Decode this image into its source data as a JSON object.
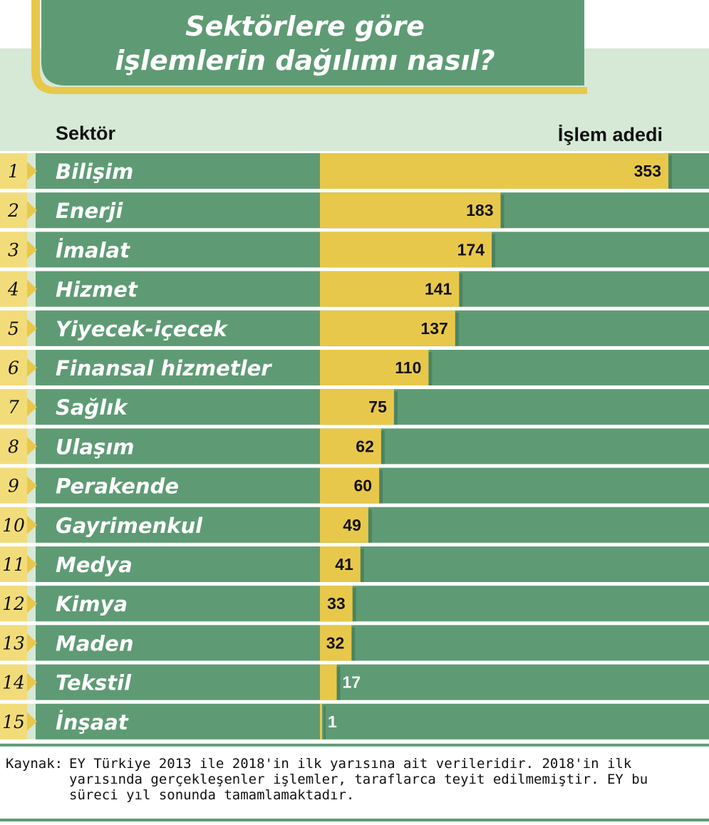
{
  "chart_data": {
    "type": "bar",
    "orientation": "horizontal",
    "title_lines": [
      "Sektörlere göre",
      "işlemlerin dağılımı nasıl?"
    ],
    "category_header": "Sektör",
    "value_header": "İşlem adedi",
    "ranks": [
      "1",
      "2",
      "3",
      "4",
      "5",
      "6",
      "7",
      "8",
      "9",
      "10",
      "11",
      "12",
      "13",
      "14",
      "15"
    ],
    "categories": [
      "Bilişim",
      "Enerji",
      "İmalat",
      "Hizmet",
      "Yiyecek-içecek",
      "Finansal hizmetler",
      "Sağlık",
      "Ulaşım",
      "Perakende",
      "Gayrimenkul",
      "Medya",
      "Kimya",
      "Maden",
      "Tekstil",
      "İnşaat"
    ],
    "values": [
      353,
      183,
      174,
      141,
      137,
      110,
      75,
      62,
      60,
      49,
      41,
      33,
      32,
      17,
      1
    ],
    "xlim": [
      0,
      353
    ],
    "colors": {
      "row": "#5e9b74",
      "bar": "#e8c84a",
      "header_band": "#d6e8d6",
      "title_box": "#5e9b74",
      "accent": "#e8c84a"
    }
  },
  "source": {
    "label": "Kaynak:",
    "text": "EY Türkiye 2013 ile 2018'in ilk yarısına ait verileridir. 2018'in ilk yarısında gerçekleşenler işlemler, taraflarca teyit edilmemiştir. EY bu süreci yıl sonunda tamamlamaktadır."
  }
}
